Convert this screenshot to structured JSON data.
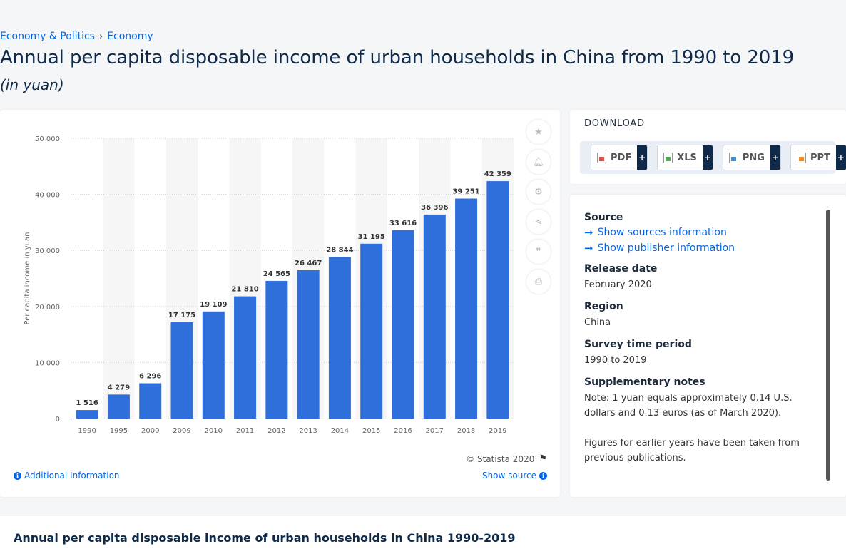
{
  "breadcrumb": {
    "items": [
      "Economy & Politics",
      "Economy"
    ],
    "separator": "›"
  },
  "title": "Annual per capita disposable income of urban households in China from 1990 to 2019",
  "unit": "(in yuan)",
  "chart_data": {
    "type": "bar",
    "categories": [
      "1990",
      "1995",
      "2000",
      "2009",
      "2010",
      "2011",
      "2012",
      "2013",
      "2014",
      "2015",
      "2016",
      "2017",
      "2018",
      "2019"
    ],
    "values": [
      1516,
      4279,
      6296,
      17175,
      19109,
      21810,
      24565,
      26467,
      28844,
      31195,
      33616,
      36396,
      39251,
      42359
    ],
    "value_labels": [
      "1 516",
      "4 279",
      "6 296",
      "17 175",
      "19 109",
      "21 810",
      "24 565",
      "26 467",
      "28 844",
      "31 195",
      "33 616",
      "36 396",
      "39 251",
      "42 359"
    ],
    "ylabel": "Per capita income in yuan",
    "ylim": [
      0,
      50000
    ],
    "yticks": [
      0,
      10000,
      20000,
      30000,
      40000,
      50000
    ],
    "ytick_labels": [
      "0",
      "10 000",
      "20 000",
      "30 000",
      "40 000",
      "50 000"
    ],
    "bar_color": "#2f6fdb",
    "grid": true
  },
  "tools": [
    "star-icon",
    "bell-icon",
    "gear-icon",
    "share-icon",
    "quote-icon",
    "print-icon"
  ],
  "copyright": "© Statista 2020",
  "additional_info": "Additional Information",
  "show_source": "Show source",
  "download": {
    "title": "DOWNLOAD",
    "buttons": [
      {
        "label": "PDF",
        "color": "#d9534f"
      },
      {
        "label": "XLS",
        "color": "#4caf50"
      },
      {
        "label": "PNG",
        "color": "#3a8fd9"
      },
      {
        "label": "PPT",
        "color": "#f08a24"
      }
    ],
    "plus": "+"
  },
  "source_panel": {
    "source_label": "Source",
    "show_sources": "Show sources information",
    "show_publisher": "Show publisher information",
    "release_label": "Release date",
    "release_value": "February 2020",
    "region_label": "Region",
    "region_value": "China",
    "survey_label": "Survey time period",
    "survey_value": "1990 to 2019",
    "notes_label": "Supplementary notes",
    "notes_1": "Note: 1 yuan equals approximately 0.14 U.S. dollars and 0.13 euros (as of March 2020).",
    "notes_2": "Figures for earlier years have been taken from previous publications."
  },
  "bottom_title": "Annual per capita disposable income of urban households in China 1990-2019"
}
